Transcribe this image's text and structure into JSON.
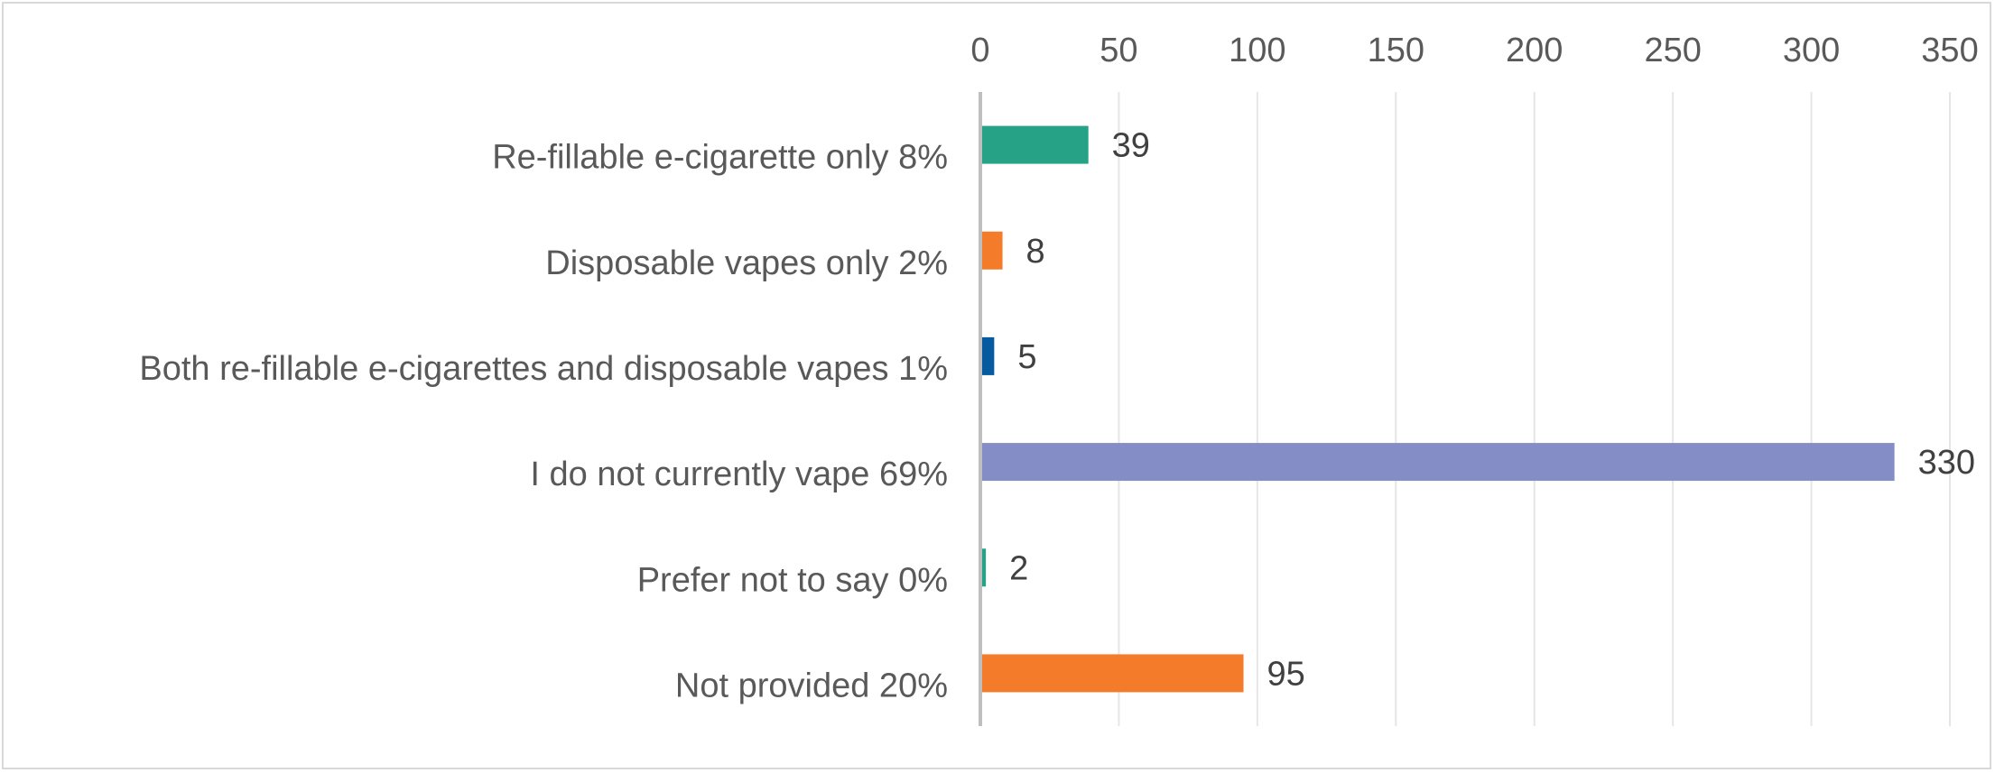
{
  "chart_data": {
    "type": "bar",
    "orientation": "horizontal",
    "categories": [
      "Re-fillable e-cigarette only 8%",
      "Disposable vapes only 2%",
      "Both re-fillable e-cigarettes and disposable vapes 1%",
      "I do not currently vape 69%",
      "Prefer not to say 0%",
      "Not provided 20%"
    ],
    "values": [
      39,
      8,
      5,
      330,
      2,
      95
    ],
    "colors": [
      "#26a387",
      "#f47b2a",
      "#055aa0",
      "#858dc6",
      "#26a387",
      "#f47b2a"
    ],
    "data_labels": [
      "39",
      "8",
      "5",
      "330",
      "2",
      "95"
    ],
    "xlim": [
      0,
      350
    ],
    "x_ticks": [
      "0",
      "50",
      "100",
      "150",
      "200",
      "250",
      "300",
      "350"
    ],
    "x_axis_position": "top",
    "grid": true,
    "legend": "none",
    "title": "",
    "xlabel": "",
    "ylabel": ""
  }
}
